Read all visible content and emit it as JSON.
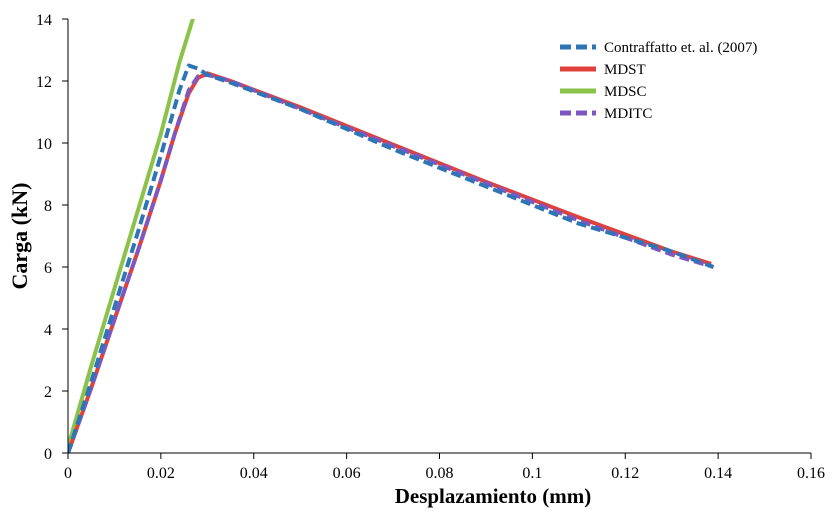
{
  "chart_data": {
    "type": "line",
    "title": "",
    "xlabel": "Desplazamiento (mm)",
    "ylabel": "Carga (kN)",
    "xlim": [
      0,
      0.16
    ],
    "ylim": [
      0,
      14
    ],
    "x_ticks": [
      0,
      0.02,
      0.04,
      0.06,
      0.08,
      0.1,
      0.12,
      0.14,
      0.16
    ],
    "x_tick_labels": [
      "0",
      "0.02",
      "0.04",
      "0.06",
      "0.08",
      "0.1",
      "0.12",
      "0.14",
      "0.16"
    ],
    "y_ticks": [
      0,
      2,
      4,
      6,
      8,
      10,
      12,
      14
    ],
    "y_tick_labels": [
      "0",
      "2",
      "4",
      "6",
      "8",
      "10",
      "12",
      "14"
    ],
    "grid": false,
    "legend_position": "top-right",
    "series": [
      {
        "name": "Contraffatto et. al. (2007)",
        "color": "#2E75B6",
        "style": "dashed",
        "x": [
          0,
          0.005,
          0.01,
          0.015,
          0.02,
          0.024,
          0.026,
          0.028,
          0.03,
          0.035,
          0.05,
          0.07,
          0.09,
          0.11,
          0.13,
          0.139
        ],
        "y": [
          0,
          2.3,
          4.7,
          7.1,
          9.6,
          11.7,
          12.5,
          12.4,
          12.2,
          11.95,
          11.1,
          9.8,
          8.6,
          7.4,
          6.5,
          6.0
        ]
      },
      {
        "name": "MDST",
        "color": "#E0413B",
        "style": "solid",
        "x": [
          0,
          0.005,
          0.01,
          0.015,
          0.02,
          0.023,
          0.026,
          0.028,
          0.03,
          0.035,
          0.05,
          0.07,
          0.09,
          0.11,
          0.13,
          0.1385
        ],
        "y": [
          0,
          2.1,
          4.3,
          6.5,
          8.8,
          10.3,
          11.6,
          12.1,
          12.25,
          12.0,
          11.15,
          9.95,
          8.75,
          7.6,
          6.5,
          6.1
        ]
      },
      {
        "name": "MDSC",
        "color": "#8BC34A",
        "style": "solid",
        "x": [
          0,
          0.005,
          0.01,
          0.015,
          0.02,
          0.024,
          0.0275
        ],
        "y": [
          0.2,
          2.8,
          5.3,
          7.8,
          10.3,
          12.6,
          14.3
        ]
      },
      {
        "name": "MDITC",
        "color": "#7E57C2",
        "style": "dashed",
        "x": [
          0,
          0.005,
          0.01,
          0.015,
          0.02,
          0.023,
          0.026,
          0.028,
          0.03,
          0.035,
          0.05,
          0.07,
          0.09,
          0.11,
          0.13,
          0.139
        ],
        "y": [
          0,
          2.1,
          4.3,
          6.5,
          8.8,
          10.3,
          11.7,
          12.15,
          12.2,
          12.0,
          11.1,
          9.9,
          8.7,
          7.5,
          6.4,
          6.0
        ]
      }
    ]
  }
}
